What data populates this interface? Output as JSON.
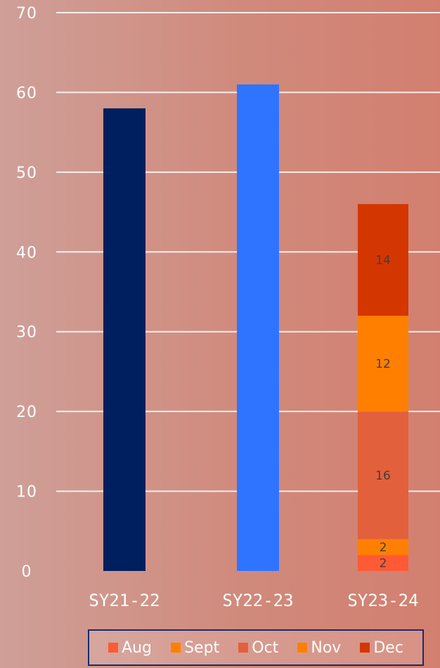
{
  "chart_data": {
    "type": "bar",
    "stacked": true,
    "categories": [
      "SY21-22",
      "SY22-23",
      "SY23-24"
    ],
    "yticks": [
      "0",
      "10",
      "20",
      "30",
      "40",
      "50",
      "60",
      "70"
    ],
    "ylim": [
      0,
      70
    ],
    "grid": true,
    "legend_position": "bottom-right",
    "totals": [
      {
        "category": "SY21-22",
        "value": 58,
        "color": "#001f5f"
      },
      {
        "category": "SY22-23",
        "value": 61,
        "color": "#2f74ff"
      }
    ],
    "series": [
      {
        "name": "Aug",
        "color": "#ff5a36",
        "values": [
          null,
          null,
          2
        ],
        "labels": [
          "",
          "",
          "2"
        ]
      },
      {
        "name": "Sept",
        "color": "#ff8000",
        "values": [
          null,
          null,
          2
        ],
        "labels": [
          "",
          "",
          "2"
        ]
      },
      {
        "name": "Oct",
        "color": "#e3603c",
        "values": [
          null,
          null,
          16
        ],
        "labels": [
          "",
          "",
          "16"
        ]
      },
      {
        "name": "Nov",
        "color": "#ff8000",
        "values": [
          null,
          null,
          12
        ],
        "labels": [
          "",
          "",
          "12"
        ]
      },
      {
        "name": "Dec",
        "color": "#d43600",
        "values": [
          null,
          null,
          14
        ],
        "labels": [
          "",
          "",
          "14"
        ]
      }
    ]
  }
}
